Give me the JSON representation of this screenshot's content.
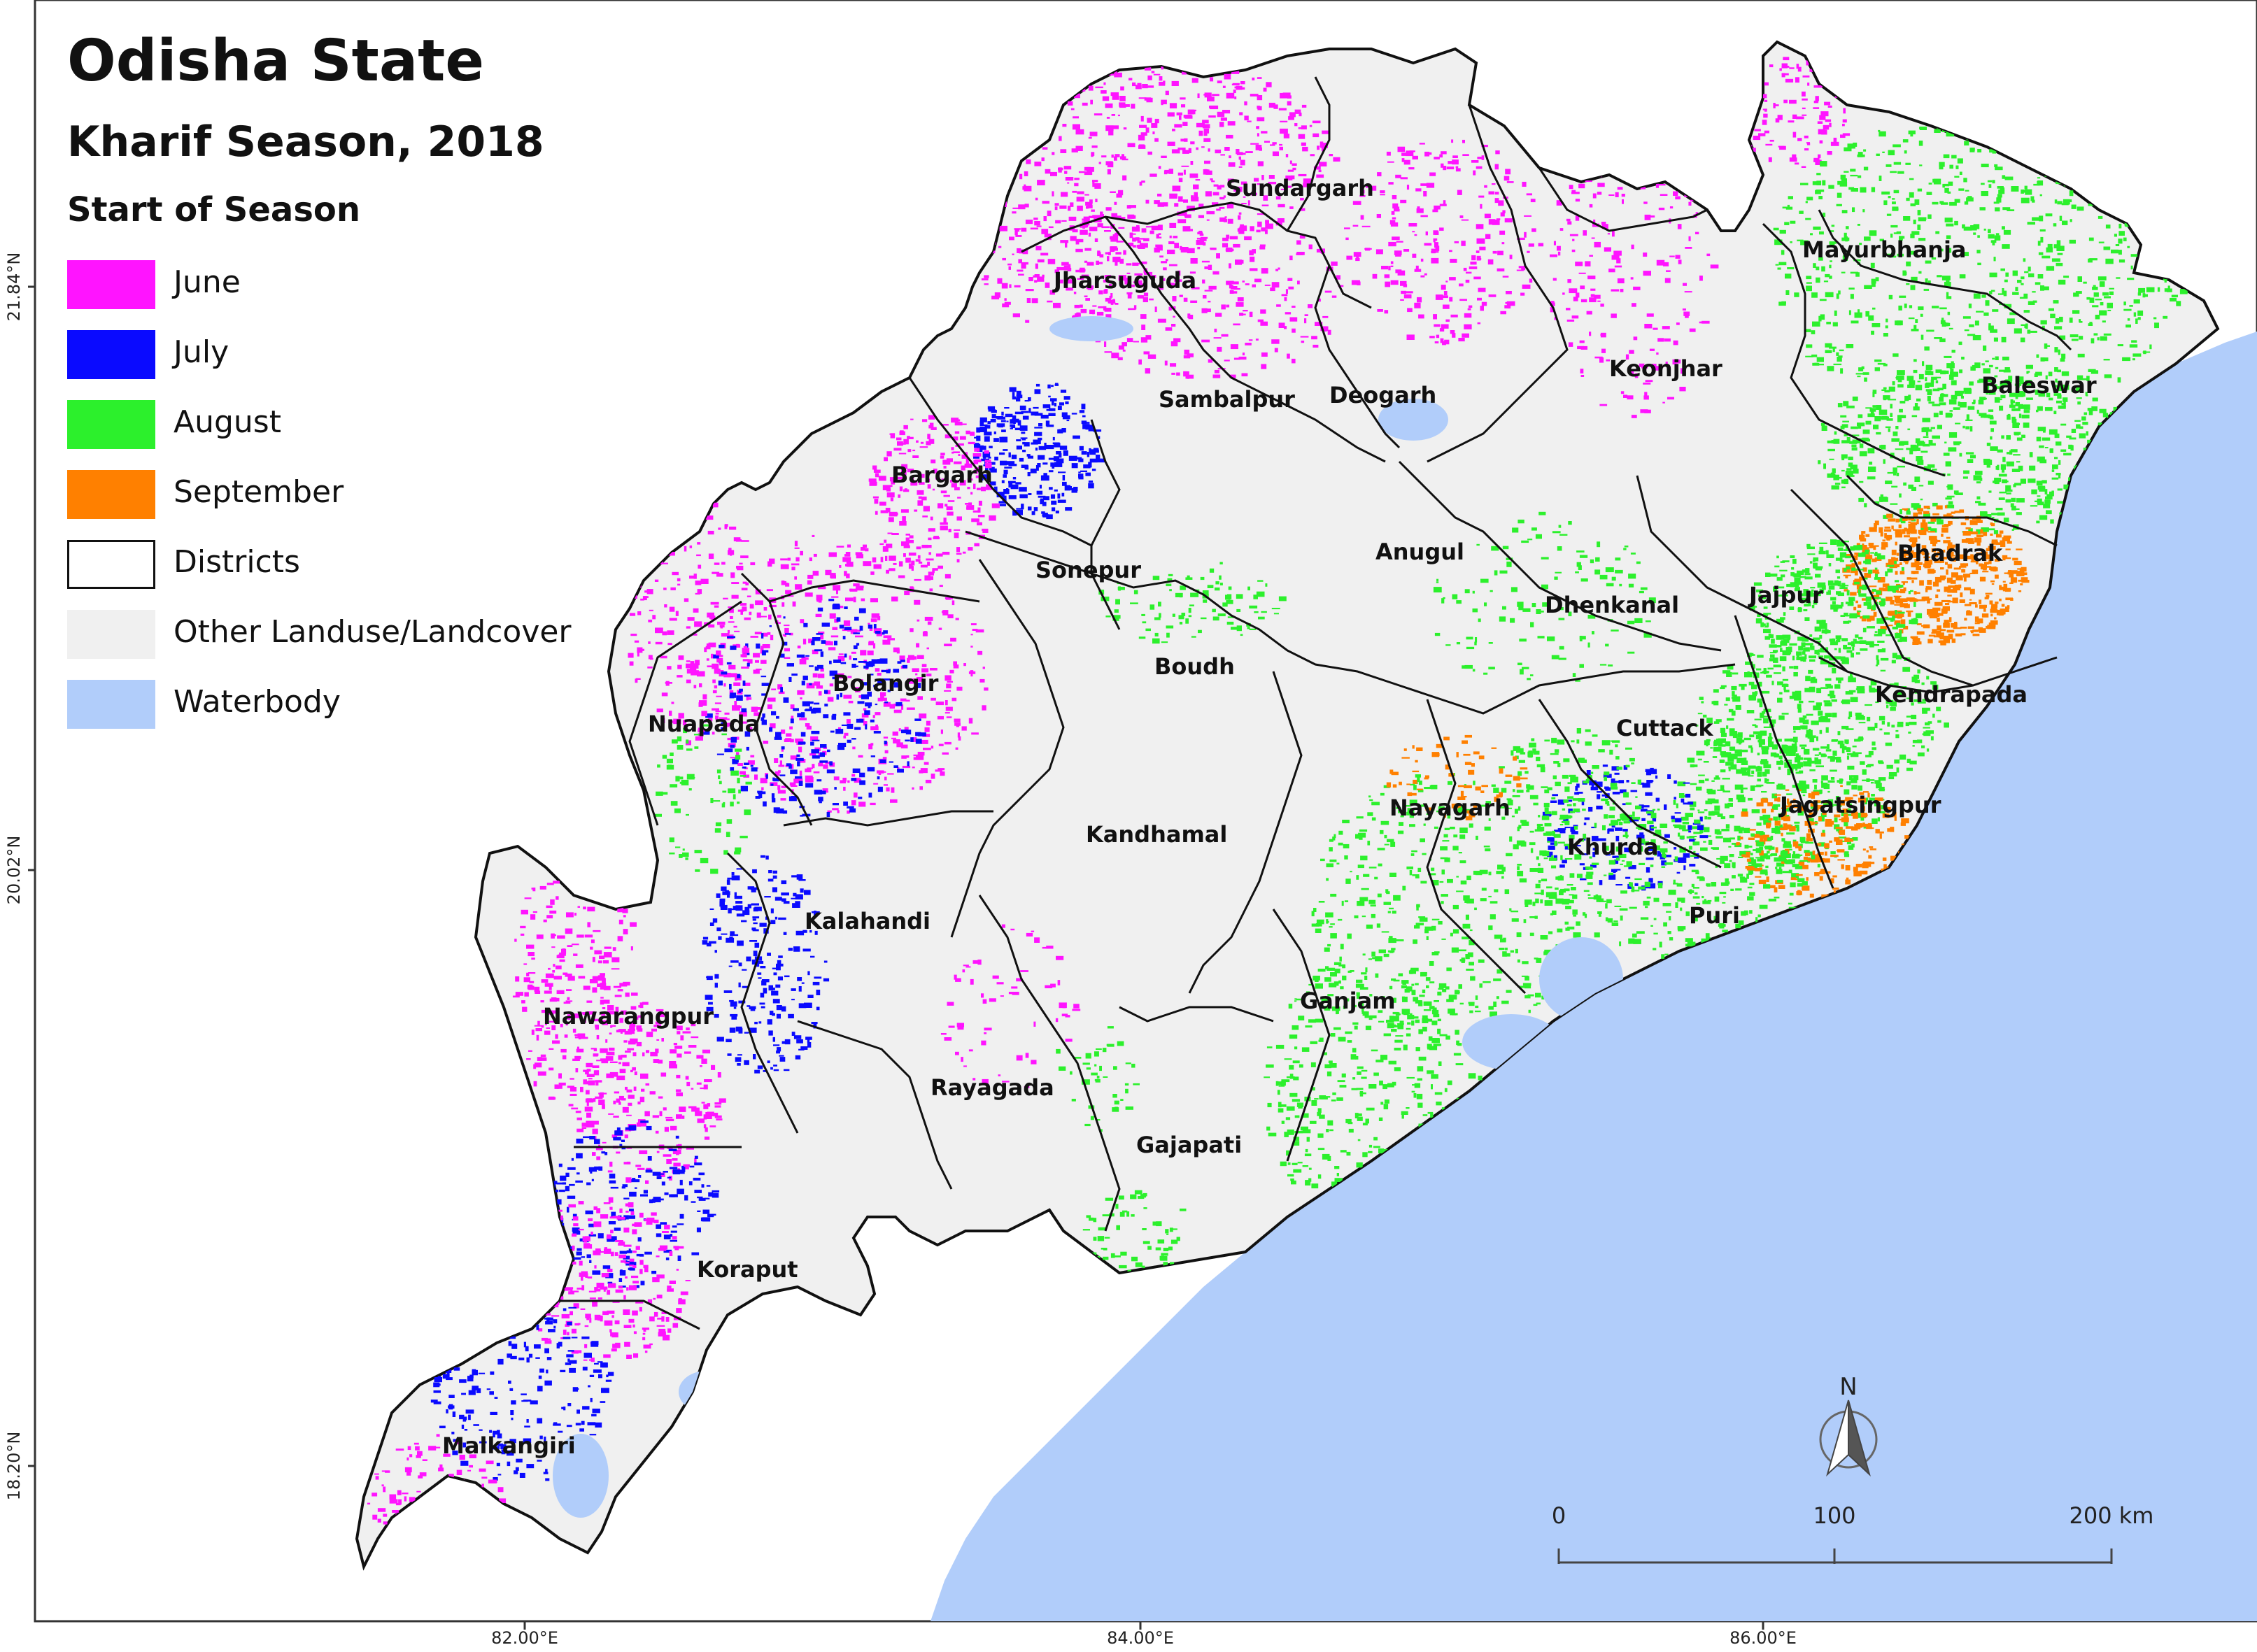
{
  "title": "Odisha State",
  "subtitle": "Kharif Season, 2018",
  "legend": {
    "title": "Start of Season",
    "items": [
      {
        "label": "June",
        "color": "#ff14ff",
        "border": "none"
      },
      {
        "label": "July",
        "color": "#0a0aff",
        "border": "none"
      },
      {
        "label": "August",
        "color": "#2cf02c",
        "border": "none"
      },
      {
        "label": "September",
        "color": "#ff8000",
        "border": "none"
      },
      {
        "label": "Districts",
        "color": "#ffffff",
        "border": "#111111"
      },
      {
        "label": "Other Landuse/Landcover",
        "color": "#f0f0f0",
        "border": "none"
      },
      {
        "label": "Waterbody",
        "color": "#b1cdfa",
        "border": "none"
      }
    ]
  },
  "colors": {
    "sea": "#b1cdfa",
    "land": "#f0f0f0",
    "june": "#ff14ff",
    "july": "#0a0aff",
    "august": "#2cf02c",
    "september": "#ff8000",
    "district_border": "#111111"
  },
  "districts": [
    "Sundargarh",
    "Jharsuguda",
    "Sambalpur",
    "Deogarh",
    "Keonjhar",
    "Mayurbhanja",
    "Baleswar",
    "Bargarh",
    "Anugul",
    "Bhadrak",
    "Sonepur",
    "Dhenkanal",
    "Jajpur",
    "Bolangir",
    "Boudh",
    "Kendrapada",
    "Nuapada",
    "Cuttack",
    "Nayagarh",
    "Jagatsingpur",
    "Kandhamal",
    "Khurda",
    "Kalahandi",
    "Puri",
    "Nawarangpur",
    "Ganjam",
    "Rayagada",
    "Gajapati",
    "Koraput",
    "Malkangiri"
  ],
  "axes": {
    "x_ticks": [
      "82.00°E",
      "84.00°E",
      "86.00°E"
    ],
    "y_ticks": [
      "21.84°N",
      "20.02°N",
      "18.20°N"
    ]
  },
  "scale_bar": {
    "labels": [
      "0",
      "100",
      "200 km"
    ]
  },
  "north_arrow": {
    "label": "N",
    "icon": "north-arrow-icon"
  }
}
